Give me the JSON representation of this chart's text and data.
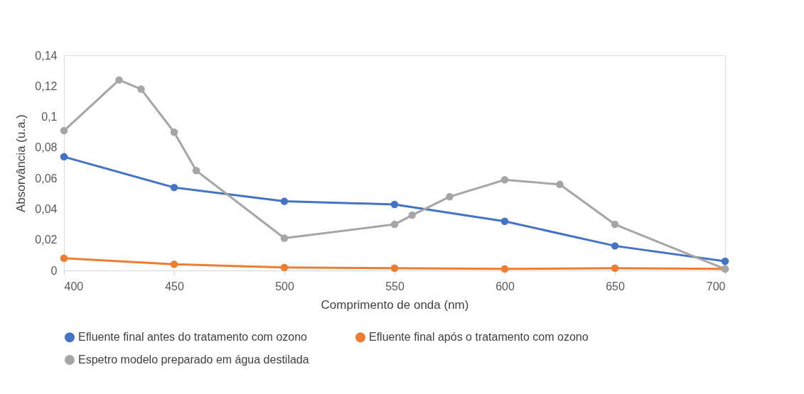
{
  "chart_data": {
    "type": "line",
    "xlabel": "Comprimento de onda (nm)",
    "ylabel": "Absorvância (u.a.)",
    "xlim": [
      400,
      700
    ],
    "xticks": [
      400,
      450,
      500,
      550,
      600,
      650,
      700
    ],
    "ylim": [
      0,
      0.14
    ],
    "yticks": [
      {
        "value": 0,
        "label": "0"
      },
      {
        "value": 0.02,
        "label": "0,02"
      },
      {
        "value": 0.04,
        "label": "0,04"
      },
      {
        "value": 0.06,
        "label": "0,06"
      },
      {
        "value": 0.08,
        "label": "0,08"
      },
      {
        "value": 0.1,
        "label": "0,1"
      },
      {
        "value": 0.12,
        "label": "0,12"
      },
      {
        "value": 0.14,
        "label": "0,14"
      }
    ],
    "grid": false,
    "legend": "bottom",
    "marker": "circle",
    "line_style": "solid",
    "series": [
      {
        "name": "Efluente final antes do tratamento com ozono",
        "color": "#4472c4",
        "x": [
          400,
          450,
          500,
          550,
          600,
          650,
          700
        ],
        "values": [
          0.074,
          0.054,
          0.045,
          0.043,
          0.032,
          0.016,
          0.006
        ]
      },
      {
        "name": "Efluente final após o tratamento com ozono",
        "color": "#ed7d31",
        "x": [
          400,
          450,
          500,
          550,
          600,
          650,
          700
        ],
        "values": [
          0.008,
          0.004,
          0.002,
          0.0015,
          0.001,
          0.0015,
          0.001
        ]
      },
      {
        "name": "Espetro modelo preparado em água destilada",
        "color": "#a5a5a5",
        "x": [
          400,
          425,
          435,
          450,
          460,
          500,
          550,
          558,
          575,
          600,
          625,
          650,
          700
        ],
        "values": [
          0.091,
          0.124,
          0.118,
          0.09,
          0.065,
          0.021,
          0.03,
          0.036,
          0.048,
          0.059,
          0.056,
          0.03,
          0.001
        ]
      }
    ]
  }
}
